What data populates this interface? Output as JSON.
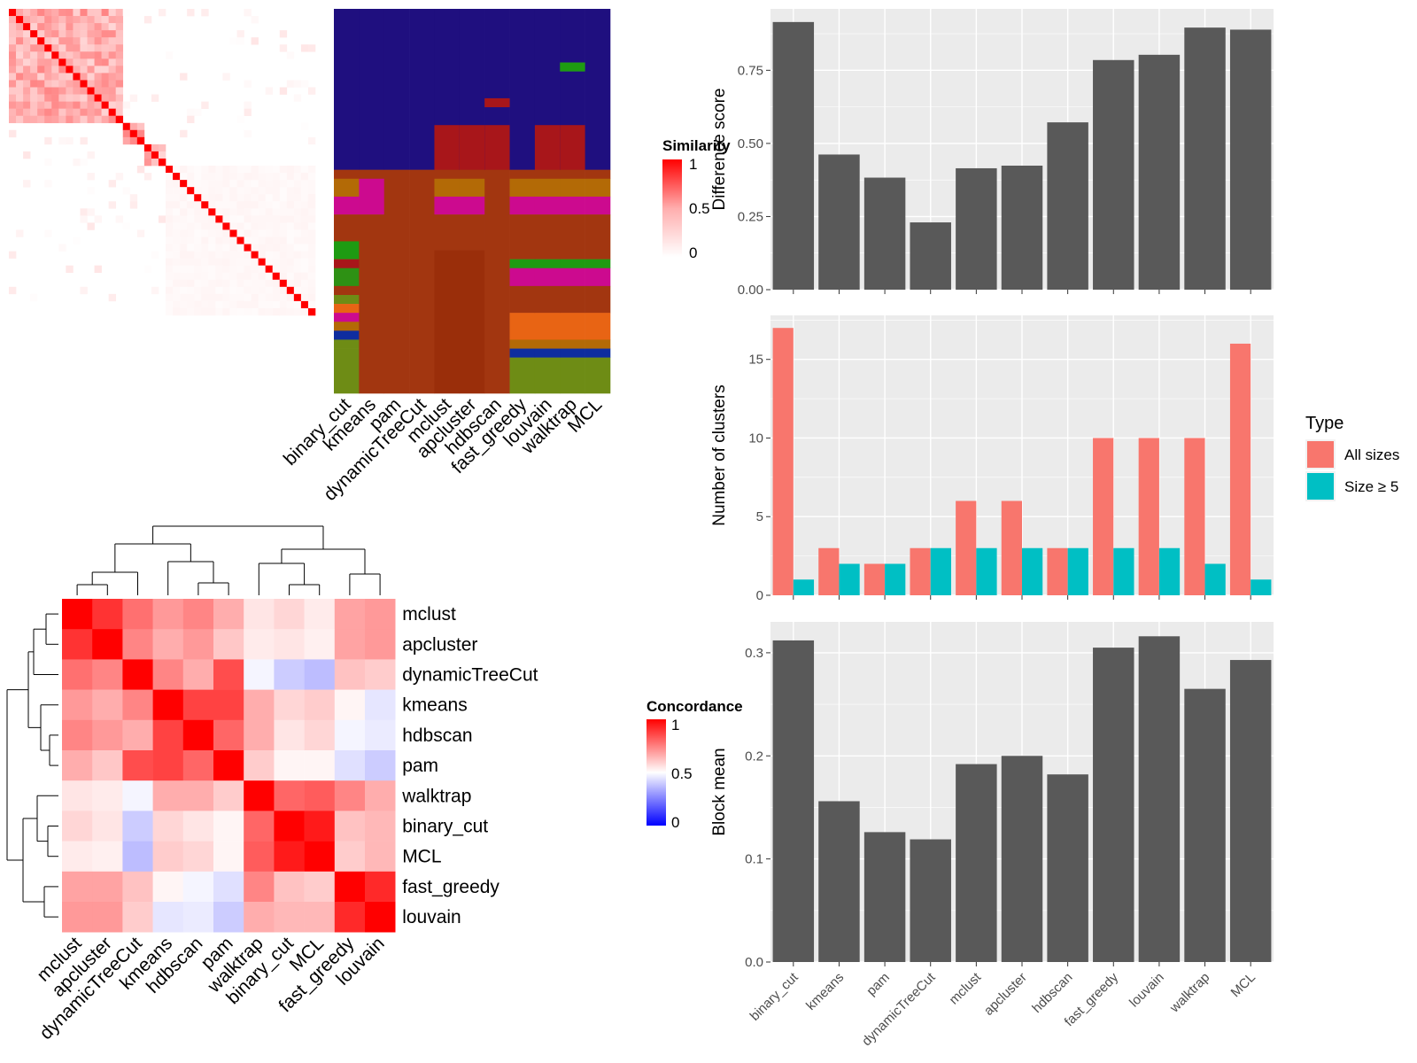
{
  "chart_data": [
    {
      "type": "heatmap",
      "panel": "similarity-matrix",
      "legend_title": "Similarity",
      "legend_ticks": [
        "1",
        "0.5",
        "0"
      ],
      "n_terms": 43,
      "diagonal_value": 1,
      "blocks": [
        {
          "from": 0,
          "to": 16,
          "within": 0.32
        },
        {
          "from": 16,
          "to": 19,
          "within": 0.35
        },
        {
          "from": 19,
          "to": 22,
          "within": 0.28
        },
        {
          "from": 22,
          "to": 43,
          "within": 0.03
        }
      ]
    },
    {
      "type": "heatmap",
      "panel": "cluster-label-matrix",
      "columns": [
        "binary_cut",
        "kmeans",
        "pam",
        "dynamicTreeCut",
        "mclust",
        "apcluster",
        "hdbscan",
        "fast_greedy",
        "louvain",
        "walktrap",
        "MCL"
      ],
      "n_rows": 43,
      "palette": [
        "#1F0F7F",
        "#A23610",
        "#9A2E0A",
        "#B36A06",
        "#CC0A8F",
        "#1E9B12",
        "#A8161A",
        "#2E9114",
        "#E86414",
        "#0E2D9F",
        "#6E8C15"
      ]
    },
    {
      "type": "heatmap",
      "panel": "concordance",
      "legend_title": "Concordance",
      "legend_ticks": [
        "1",
        "0.5",
        "0"
      ],
      "methods": [
        "mclust",
        "apcluster",
        "dynamicTreeCut",
        "kmeans",
        "hdbscan",
        "pam",
        "walktrap",
        "binary_cut",
        "MCL",
        "fast_greedy",
        "louvain"
      ],
      "matrix": [
        [
          1.0,
          0.9,
          0.78,
          0.7,
          0.74,
          0.66,
          0.55,
          0.58,
          0.54,
          0.68,
          0.7
        ],
        [
          0.9,
          1.0,
          0.74,
          0.66,
          0.7,
          0.61,
          0.54,
          0.55,
          0.53,
          0.68,
          0.7
        ],
        [
          0.78,
          0.74,
          1.0,
          0.74,
          0.66,
          0.85,
          0.48,
          0.4,
          0.37,
          0.62,
          0.6
        ],
        [
          0.7,
          0.66,
          0.74,
          1.0,
          0.87,
          0.87,
          0.66,
          0.58,
          0.6,
          0.52,
          0.45
        ],
        [
          0.74,
          0.7,
          0.66,
          0.87,
          1.0,
          0.8,
          0.66,
          0.55,
          0.58,
          0.48,
          0.46
        ],
        [
          0.66,
          0.61,
          0.85,
          0.87,
          0.8,
          1.0,
          0.6,
          0.52,
          0.52,
          0.44,
          0.4
        ],
        [
          0.55,
          0.54,
          0.48,
          0.66,
          0.66,
          0.6,
          1.0,
          0.8,
          0.82,
          0.74,
          0.66
        ],
        [
          0.58,
          0.55,
          0.4,
          0.58,
          0.55,
          0.52,
          0.8,
          1.0,
          0.95,
          0.62,
          0.64
        ],
        [
          0.54,
          0.53,
          0.37,
          0.6,
          0.58,
          0.52,
          0.82,
          0.95,
          1.0,
          0.6,
          0.64
        ],
        [
          0.68,
          0.68,
          0.62,
          0.52,
          0.48,
          0.44,
          0.74,
          0.62,
          0.6,
          1.0,
          0.92
        ],
        [
          0.7,
          0.7,
          0.6,
          0.45,
          0.46,
          0.4,
          0.66,
          0.64,
          0.64,
          0.92,
          1.0
        ]
      ]
    },
    {
      "type": "bar",
      "panel": "difference-score",
      "categories": [
        "binary_cut",
        "kmeans",
        "pam",
        "dynamicTreeCut",
        "mclust",
        "apcluster",
        "hdbscan",
        "fast_greedy",
        "louvain",
        "walktrap",
        "MCL"
      ],
      "values": [
        0.915,
        0.462,
        0.383,
        0.23,
        0.415,
        0.424,
        0.572,
        0.785,
        0.803,
        0.896,
        0.889
      ],
      "ylabel": "Difference score",
      "ylim": [
        0,
        0.96
      ],
      "yticks": [
        "0.00",
        "0.25",
        "0.50",
        "0.75"
      ],
      "ytick_values": [
        0,
        0.25,
        0.5,
        0.75
      ]
    },
    {
      "type": "bar",
      "panel": "number-of-clusters",
      "categories": [
        "binary_cut",
        "kmeans",
        "pam",
        "dynamicTreeCut",
        "mclust",
        "apcluster",
        "hdbscan",
        "fast_greedy",
        "louvain",
        "walktrap",
        "MCL"
      ],
      "series": [
        {
          "name": "All sizes",
          "values": [
            17,
            3,
            2,
            3,
            6,
            6,
            3,
            10,
            10,
            10,
            16
          ],
          "color": "#F8766D"
        },
        {
          "name": "Size ≥ 5",
          "values": [
            1,
            2,
            2,
            3,
            3,
            3,
            3,
            3,
            3,
            2,
            1
          ],
          "color": "#00BFC4"
        }
      ],
      "ylabel": "Number of clusters",
      "ylim": [
        0,
        17.8
      ],
      "yticks": [
        "0",
        "5",
        "10",
        "15"
      ],
      "ytick_values": [
        0,
        5,
        10,
        15
      ],
      "legend_title": "Type",
      "legend_position": "right"
    },
    {
      "type": "bar",
      "panel": "block-mean",
      "categories": [
        "binary_cut",
        "kmeans",
        "pam",
        "dynamicTreeCut",
        "mclust",
        "apcluster",
        "hdbscan",
        "fast_greedy",
        "louvain",
        "walktrap",
        "MCL"
      ],
      "values": [
        0.312,
        0.156,
        0.126,
        0.119,
        0.192,
        0.2,
        0.182,
        0.305,
        0.316,
        0.265,
        0.293
      ],
      "ylabel": "Block mean",
      "ylim": [
        0,
        0.33
      ],
      "yticks": [
        "0.0",
        "0.1",
        "0.2",
        "0.3"
      ],
      "ytick_values": [
        0,
        0.1,
        0.2,
        0.3
      ],
      "grey_bar_color": "#595959"
    }
  ]
}
